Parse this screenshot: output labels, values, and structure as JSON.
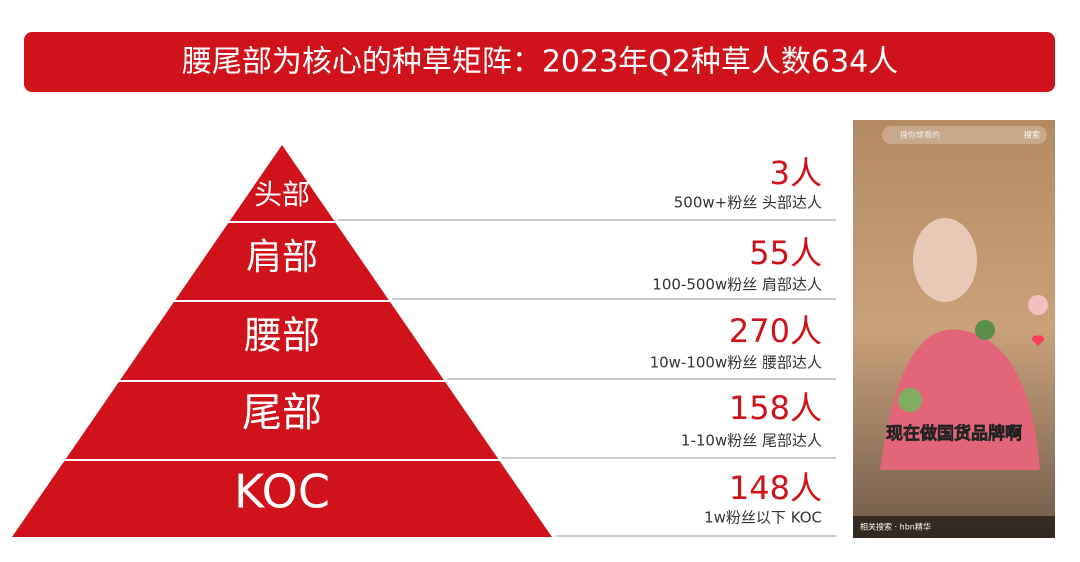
{
  "header": {
    "title": "腰尾部为核心的种草矩阵：2023年Q2种草人数634人"
  },
  "pyramid": {
    "levels": [
      {
        "label": "头部",
        "count": "3人",
        "desc": "500w+粉丝 头部达人"
      },
      {
        "label": "肩部",
        "count": "55人",
        "desc": "100-500w粉丝 肩部达人"
      },
      {
        "label": "腰部",
        "count": "270人",
        "desc": "10w-100w粉丝 腰部达人"
      },
      {
        "label": "尾部",
        "count": "158人",
        "desc": "1-10w粉丝 尾部达人"
      },
      {
        "label": "KOC",
        "count": "148人",
        "desc": "1w粉丝以下 KOC"
      }
    ]
  },
  "phone": {
    "search_placeholder": "搜你想看的",
    "search_button": "搜索",
    "caption": "现在做国货品牌啊",
    "related": "相关搜索 · hbn精华"
  }
}
